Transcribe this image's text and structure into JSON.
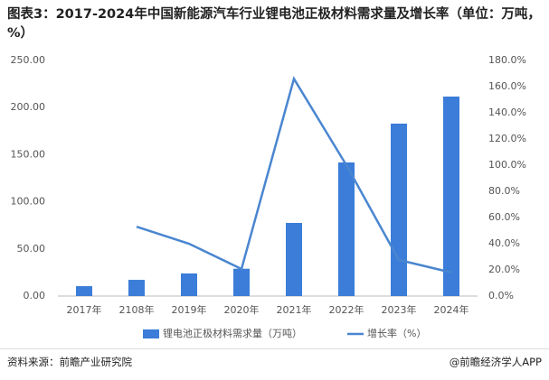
{
  "chart_data": {
    "type": "bar-line",
    "title": "图表3：2017-2024年中国新能源汽车行业锂电池正极材料需求量及增长率（单位：万吨，%）",
    "source": "资料来源：前瞻产业研究院",
    "credit": "@前瞻经济学人APP",
    "categories": [
      "2017年",
      "2108年",
      "2019年",
      "2020年",
      "2021年",
      "2022年",
      "2023年",
      "2024年"
    ],
    "series": [
      {
        "name": "锂电池正极材料需求量（万吨）",
        "type": "bar",
        "color": "#3b7dd8",
        "values": [
          10.5,
          17.2,
          24,
          29,
          77.6,
          141.8,
          183,
          211.7
        ]
      },
      {
        "name": "增长率（%）",
        "type": "line",
        "axis": "y2",
        "color": "#4a86d0",
        "values": [
          null,
          53,
          40,
          20.7,
          166,
          100,
          27.6,
          18
        ]
      }
    ],
    "ylim": [
      0,
      250
    ],
    "yticks": [
      {
        "value": 0,
        "label": "0.00"
      },
      {
        "value": 50,
        "label": "50.00"
      },
      {
        "value": 100,
        "label": "100.00"
      },
      {
        "value": 150,
        "label": "150.00"
      },
      {
        "value": 200,
        "label": "200.00"
      },
      {
        "value": 250,
        "label": "250.00"
      }
    ],
    "y2lim": [
      0,
      180
    ],
    "y2ticks": [
      {
        "value": 0,
        "label": "0.0%"
      },
      {
        "value": 20,
        "label": "20.0%"
      },
      {
        "value": 40,
        "label": "40.0%"
      },
      {
        "value": 60,
        "label": "60.0%"
      },
      {
        "value": 80,
        "label": "80.0%"
      },
      {
        "value": 100,
        "label": "100.0%"
      },
      {
        "value": 120,
        "label": "120.0%"
      },
      {
        "value": 140,
        "label": "140.0%"
      },
      {
        "value": 160,
        "label": "160.0%"
      },
      {
        "value": 180,
        "label": "180.0%"
      }
    ],
    "grid": false,
    "legend": "bottom"
  }
}
